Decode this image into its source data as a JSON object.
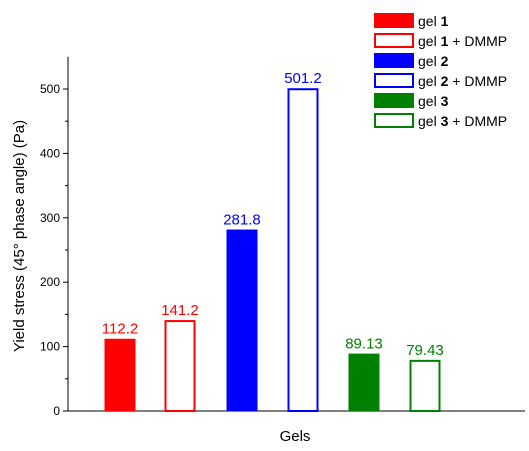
{
  "chart_data": {
    "type": "bar",
    "title": "",
    "xlabel": "Gels",
    "ylabel": "Yield stress (45° phase angle) (Pa)",
    "ylim": [
      0,
      550
    ],
    "yticks": [
      0,
      100,
      200,
      300,
      400,
      500
    ],
    "grid": false,
    "legend_position": "top-right",
    "series": [
      {
        "name_prefix": "gel ",
        "name_bold": "1",
        "name_suffix": "",
        "value": 112.2,
        "label": "112.2",
        "color": "#ff0000",
        "filled": true
      },
      {
        "name_prefix": "gel ",
        "name_bold": "1",
        "name_suffix": " + DMMP",
        "value": 141.2,
        "label": "141.2",
        "color": "#ff0000",
        "filled": false
      },
      {
        "name_prefix": "gel ",
        "name_bold": "2",
        "name_suffix": "",
        "value": 281.8,
        "label": "281.8",
        "color": "#0000ff",
        "filled": true
      },
      {
        "name_prefix": "gel ",
        "name_bold": "2",
        "name_suffix": " + DMMP",
        "value": 501.2,
        "label": "501.2",
        "color": "#0000ff",
        "filled": false
      },
      {
        "name_prefix": "gel ",
        "name_bold": "3",
        "name_suffix": "",
        "value": 89.13,
        "label": "89.13",
        "color": "#008000",
        "filled": true
      },
      {
        "name_prefix": "gel ",
        "name_bold": "3",
        "name_suffix": " + DMMP",
        "value": 79.43,
        "label": "79.43",
        "color": "#008000",
        "filled": false
      }
    ]
  }
}
